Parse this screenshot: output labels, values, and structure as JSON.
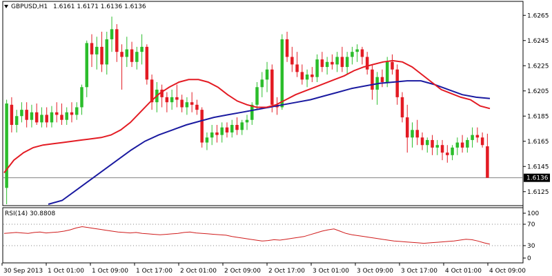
{
  "header": {
    "symbol": "GBPUSD,H1",
    "ohlc": "1.6161 1.6171 1.6136 1.6136",
    "dropdown_icon": "triangle-down-icon"
  },
  "indicator": {
    "label": "RSI(14) 30.8808",
    "levels": [
      "100",
      "70",
      "30",
      "0"
    ]
  },
  "current_price_label": "1.6136",
  "colors": {
    "bull": "#2bbd2b",
    "bear": "#e31b23",
    "ma_fast": "#e31b23",
    "ma_slow": "#1a1aa0",
    "rsi": "#d01a1a",
    "grid_dots": "#808080",
    "price_tag_bg": "#000000"
  },
  "chart_data": {
    "type": "candlestick",
    "y_axis": {
      "ticks": [
        "1.6265",
        "1.6245",
        "1.6225",
        "1.6205",
        "1.6185",
        "1.6165",
        "1.6145",
        "1.6125"
      ],
      "range": [
        1.6115,
        1.6275
      ]
    },
    "x_axis": {
      "labels": [
        "30 Sep 2013",
        "1 Oct 01:00",
        "1 Oct 09:00",
        "1 Oct 17:00",
        "2 Oct 01:00",
        "2 Oct 09:00",
        "2 Oct 17:00",
        "3 Oct 01:00",
        "3 Oct 09:00",
        "3 Oct 17:00",
        "4 Oct 01:00",
        "4 Oct 09:00"
      ]
    },
    "current_price": 1.6136,
    "candles": [
      [
        1.6128,
        1.6198,
        1.6115,
        1.6195
      ],
      [
        1.6194,
        1.62,
        1.6172,
        1.6178
      ],
      [
        1.6178,
        1.619,
        1.6172,
        1.6185
      ],
      [
        1.6185,
        1.6196,
        1.618,
        1.619
      ],
      [
        1.619,
        1.6196,
        1.6176,
        1.6182
      ],
      [
        1.6182,
        1.6194,
        1.6176,
        1.6188
      ],
      [
        1.6188,
        1.6195,
        1.6178,
        1.618
      ],
      [
        1.618,
        1.6192,
        1.6176,
        1.6186
      ],
      [
        1.6186,
        1.6192,
        1.6176,
        1.618
      ],
      [
        1.618,
        1.6193,
        1.6176,
        1.6188
      ],
      [
        1.6188,
        1.6196,
        1.618,
        1.6186
      ],
      [
        1.6186,
        1.6195,
        1.6178,
        1.6182
      ],
      [
        1.6182,
        1.6192,
        1.6178,
        1.6188
      ],
      [
        1.6188,
        1.6196,
        1.618,
        1.6186
      ],
      [
        1.6186,
        1.6196,
        1.6182,
        1.6192
      ],
      [
        1.6192,
        1.621,
        1.6186,
        1.6208
      ],
      [
        1.6208,
        1.6245,
        1.62,
        1.6243
      ],
      [
        1.6243,
        1.625,
        1.6224,
        1.6234
      ],
      [
        1.6234,
        1.6248,
        1.6222,
        1.624
      ],
      [
        1.624,
        1.6252,
        1.622,
        1.6226
      ],
      [
        1.6226,
        1.6252,
        1.6218,
        1.6246
      ],
      [
        1.6246,
        1.6264,
        1.6236,
        1.6254
      ],
      [
        1.6254,
        1.6258,
        1.6228,
        1.6236
      ],
      [
        1.6236,
        1.6242,
        1.6206,
        1.6232
      ],
      [
        1.6232,
        1.6248,
        1.6224,
        1.6238
      ],
      [
        1.6238,
        1.6244,
        1.6224,
        1.6228
      ],
      [
        1.6228,
        1.624,
        1.6222,
        1.6236
      ],
      [
        1.6236,
        1.625,
        1.6226,
        1.624
      ],
      [
        1.624,
        1.6242,
        1.621,
        1.6214
      ],
      [
        1.6214,
        1.6218,
        1.619,
        1.6196
      ],
      [
        1.6196,
        1.6212,
        1.6188,
        1.6206
      ],
      [
        1.6206,
        1.621,
        1.6192,
        1.62
      ],
      [
        1.62,
        1.6204,
        1.6188,
        1.6196
      ],
      [
        1.6196,
        1.6206,
        1.619,
        1.62
      ],
      [
        1.62,
        1.621,
        1.6192,
        1.6198
      ],
      [
        1.6198,
        1.6202,
        1.6188,
        1.6192
      ],
      [
        1.6192,
        1.62,
        1.6186,
        1.6196
      ],
      [
        1.6196,
        1.6204,
        1.6188,
        1.6194
      ],
      [
        1.6194,
        1.6198,
        1.6186,
        1.619
      ],
      [
        1.619,
        1.6192,
        1.616,
        1.6164
      ],
      [
        1.6164,
        1.6172,
        1.6158,
        1.6168
      ],
      [
        1.6168,
        1.6178,
        1.6162,
        1.6172
      ],
      [
        1.6172,
        1.6178,
        1.6164,
        1.617
      ],
      [
        1.617,
        1.618,
        1.6164,
        1.6176
      ],
      [
        1.6176,
        1.618,
        1.6168,
        1.6172
      ],
      [
        1.6172,
        1.6182,
        1.6168,
        1.6178
      ],
      [
        1.6178,
        1.6184,
        1.617,
        1.6174
      ],
      [
        1.6174,
        1.6182,
        1.617,
        1.618
      ],
      [
        1.618,
        1.6186,
        1.6174,
        1.6182
      ],
      [
        1.6182,
        1.6196,
        1.6178,
        1.6194
      ],
      [
        1.6194,
        1.6212,
        1.619,
        1.6208
      ],
      [
        1.6208,
        1.622,
        1.62,
        1.6214
      ],
      [
        1.6214,
        1.6228,
        1.6204,
        1.6222
      ],
      [
        1.6222,
        1.6226,
        1.6188,
        1.6194
      ],
      [
        1.6194,
        1.62,
        1.6186,
        1.6192
      ],
      [
        1.6192,
        1.625,
        1.619,
        1.6246
      ],
      [
        1.6246,
        1.6252,
        1.6228,
        1.6232
      ],
      [
        1.6232,
        1.624,
        1.622,
        1.6226
      ],
      [
        1.6226,
        1.6236,
        1.6216,
        1.622
      ],
      [
        1.622,
        1.6226,
        1.621,
        1.6214
      ],
      [
        1.6214,
        1.6222,
        1.6208,
        1.6218
      ],
      [
        1.6218,
        1.6224,
        1.6212,
        1.6216
      ],
      [
        1.6216,
        1.6234,
        1.6212,
        1.623
      ],
      [
        1.623,
        1.6236,
        1.622,
        1.6224
      ],
      [
        1.6224,
        1.6232,
        1.6218,
        1.6228
      ],
      [
        1.6228,
        1.6234,
        1.6222,
        1.6226
      ],
      [
        1.6226,
        1.6236,
        1.622,
        1.6232
      ],
      [
        1.6232,
        1.624,
        1.622,
        1.6224
      ],
      [
        1.6224,
        1.6236,
        1.6218,
        1.6232
      ],
      [
        1.6232,
        1.624,
        1.6226,
        1.6236
      ],
      [
        1.6236,
        1.6242,
        1.6228,
        1.6238
      ],
      [
        1.6238,
        1.624,
        1.6226,
        1.6232
      ],
      [
        1.6232,
        1.6236,
        1.6218,
        1.6222
      ],
      [
        1.6222,
        1.6226,
        1.6198,
        1.6206
      ],
      [
        1.6206,
        1.622,
        1.6194,
        1.6216
      ],
      [
        1.6216,
        1.6222,
        1.6208,
        1.6212
      ],
      [
        1.6212,
        1.6232,
        1.6208,
        1.6228
      ],
      [
        1.6228,
        1.6234,
        1.6218,
        1.6222
      ],
      [
        1.6222,
        1.6226,
        1.6194,
        1.62
      ],
      [
        1.62,
        1.6204,
        1.618,
        1.6184
      ],
      [
        1.6184,
        1.6194,
        1.6156,
        1.6168
      ],
      [
        1.6168,
        1.618,
        1.616,
        1.6174
      ],
      [
        1.6174,
        1.6182,
        1.6162,
        1.6168
      ],
      [
        1.6168,
        1.6172,
        1.6158,
        1.6162
      ],
      [
        1.6162,
        1.6168,
        1.6156,
        1.6166
      ],
      [
        1.6166,
        1.617,
        1.6154,
        1.616
      ],
      [
        1.616,
        1.6166,
        1.6154,
        1.6162
      ],
      [
        1.6162,
        1.6166,
        1.615,
        1.6156
      ],
      [
        1.6156,
        1.6162,
        1.6148,
        1.6154
      ],
      [
        1.6154,
        1.6162,
        1.615,
        1.616
      ],
      [
        1.616,
        1.6168,
        1.6154,
        1.6164
      ],
      [
        1.6164,
        1.617,
        1.6156,
        1.616
      ],
      [
        1.616,
        1.6168,
        1.6156,
        1.6166
      ],
      [
        1.6166,
        1.6176,
        1.616,
        1.617
      ],
      [
        1.617,
        1.6176,
        1.6164,
        1.6168
      ],
      [
        1.6168,
        1.6172,
        1.616,
        1.6162
      ],
      [
        1.6161,
        1.6171,
        1.6136,
        1.6136
      ]
    ],
    "ma_fast": [
      1.614,
      1.615,
      1.6156,
      1.616,
      1.6162,
      1.6163,
      1.6164,
      1.6165,
      1.6166,
      1.6167,
      1.6168,
      1.617,
      1.6174,
      1.618,
      1.6188,
      1.6196,
      1.6203,
      1.6208,
      1.6212,
      1.6214,
      1.6214,
      1.6212,
      1.6208,
      1.6202,
      1.6197,
      1.6194,
      1.6192,
      1.6192,
      1.6194,
      1.6198,
      1.6202,
      1.6205,
      1.6208,
      1.6211,
      1.6214,
      1.6217,
      1.6221,
      1.6224,
      1.6226,
      1.6228,
      1.6229,
      1.6228,
      1.6224,
      1.6218,
      1.6212,
      1.6206,
      1.6203,
      1.62,
      1.6198,
      1.6193,
      1.6191
    ],
    "ma_slow": [
      1.611,
      1.6118,
      1.6126,
      1.6134,
      1.6142,
      1.615,
      1.6158,
      1.6165,
      1.617,
      1.6174,
      1.6178,
      1.6181,
      1.6184,
      1.6186,
      1.6188,
      1.619,
      1.6192,
      1.6194,
      1.6196,
      1.6198,
      1.6201,
      1.6204,
      1.6207,
      1.6209,
      1.6211,
      1.6212,
      1.6213,
      1.6213,
      1.621,
      1.6206,
      1.6202,
      1.62,
      1.6199
    ],
    "rsi": [
      55,
      56,
      57,
      56,
      55,
      57,
      58,
      56,
      57,
      58,
      60,
      63,
      67,
      70,
      68,
      66,
      64,
      62,
      60,
      58,
      57,
      56,
      57,
      55,
      54,
      53,
      52,
      53,
      54,
      55,
      57,
      58,
      56,
      55,
      54,
      53,
      52,
      51,
      48,
      46,
      44,
      42,
      40,
      38,
      39,
      41,
      40,
      42,
      44,
      46,
      48,
      52,
      56,
      60,
      63,
      65,
      60,
      55,
      52,
      50,
      48,
      46,
      44,
      42,
      40,
      38,
      37,
      36,
      35,
      34,
      33,
      34,
      35,
      36,
      37,
      38,
      40,
      42,
      41,
      38,
      34,
      30.9
    ]
  }
}
